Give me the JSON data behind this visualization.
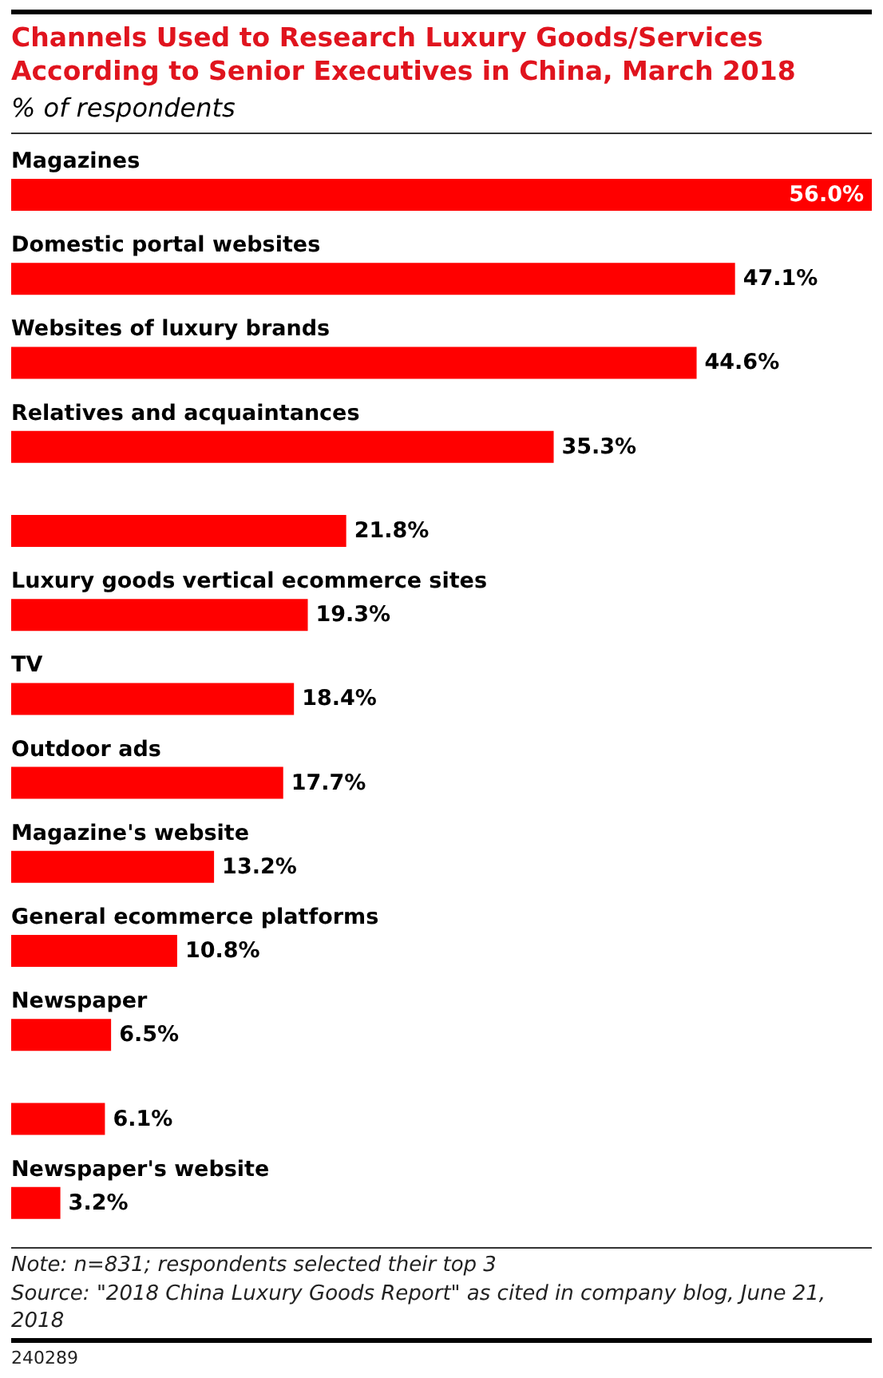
{
  "chart_data": {
    "type": "bar",
    "orientation": "horizontal",
    "title": "Channels Used to Research Luxury Goods/Services According to Senior Executives in China, March 2018",
    "subtitle": "% of respondents",
    "categories": [
      "Magazines",
      "Domestic portal websites",
      "Websites of luxury brands",
      "Relatives and acquaintances",
      null,
      "Luxury goods vertical ecommerce sites",
      "TV",
      "Outdoor ads",
      "Magazine's website",
      "General ecommerce platforms",
      "Newspaper",
      null,
      "Newspaper's website"
    ],
    "values": [
      56.0,
      47.1,
      44.6,
      35.3,
      21.8,
      19.3,
      18.4,
      17.7,
      13.2,
      10.8,
      6.5,
      6.1,
      3.2
    ],
    "value_labels": [
      "56.0%",
      "47.1%",
      "44.6%",
      "35.3%",
      "21.8%",
      "19.3%",
      "18.4%",
      "17.7%",
      "13.2%",
      "10.8%",
      "6.5%",
      "6.1%",
      "3.2%"
    ],
    "color": "#ff0000",
    "tick_labels": "y",
    "legend": false,
    "grid": false,
    "annotations": [
      "Note: n=831; respondents selected their top 3",
      "Source: \"2018 China Luxury Goods Report\" as cited in company blog, June 21, 2018",
      "240289"
    ]
  }
}
